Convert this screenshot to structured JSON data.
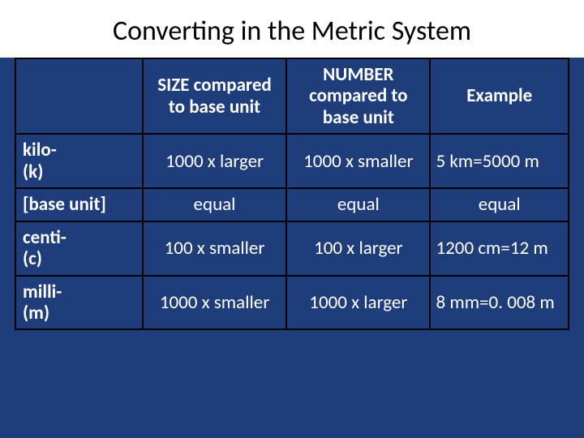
{
  "title": "Converting in the Metric System",
  "background_color": "#1f3d7a",
  "title_bg_color": "#ffffff",
  "title_color": "#000000",
  "text_color": "#ffffff",
  "border_color": "#000000",
  "title_fontsize": 34,
  "cell_fontsize": 23,
  "columns": {
    "col0": "",
    "col1": "SIZE compared to base unit",
    "col2": "NUMBER compared to base unit",
    "col3": "Example"
  },
  "column_widths_pct": [
    23,
    26,
    26,
    25
  ],
  "rows": [
    {
      "prefix_line1": "kilo-",
      "prefix_line2": "(k)",
      "size": "1000 x larger",
      "number": "1000 x smaller",
      "example": "5 km=5000 m"
    },
    {
      "prefix_line1": "[base unit]",
      "prefix_line2": "",
      "size": "equal",
      "number": "equal",
      "example": "equal"
    },
    {
      "prefix_line1": "centi-",
      "prefix_line2": "(c)",
      "size": "100 x smaller",
      "number": "100 x larger",
      "example": "1200 cm=12 m"
    },
    {
      "prefix_line1": "milli-",
      "prefix_line2": "(m)",
      "size": "1000 x smaller",
      "number": "1000 x larger",
      "example": "8 mm=0. 008 m"
    }
  ]
}
